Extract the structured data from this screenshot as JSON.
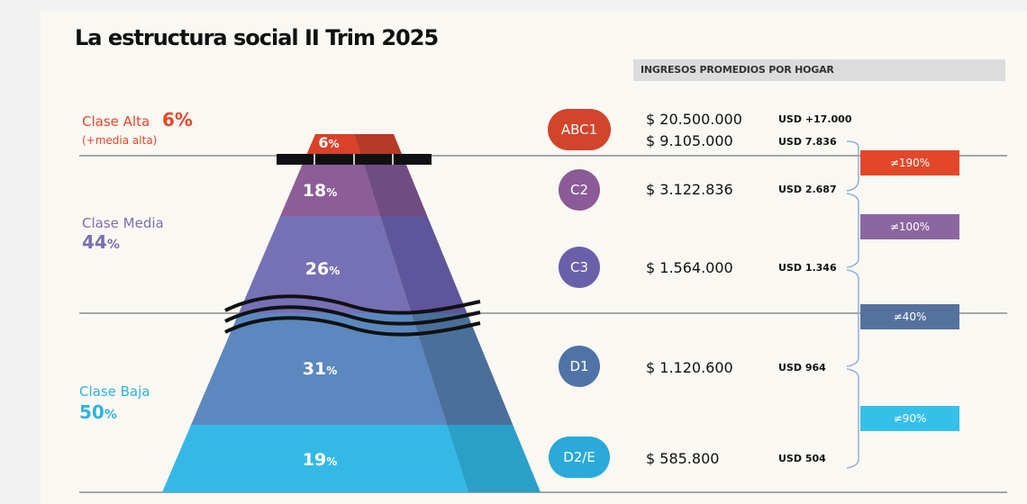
{
  "title": "La estructura social II Trim 2025",
  "income_header": "INGRESOS PROMEDIOS POR HOGAR",
  "classes": [
    {
      "name": "Clase Alta",
      "pct": "6%",
      "sub": "(+media alta)",
      "color": "#e2472a"
    },
    {
      "name": "Clase Media",
      "pct_num": "44",
      "pct_unit": "%",
      "color": "#7a6fb0"
    },
    {
      "name": "Clase Baja",
      "pct_num": "50",
      "pct_unit": "%",
      "color": "#2fb3dd"
    }
  ],
  "levels": [
    {
      "num": "6",
      "unit": "%",
      "color": "#d9412a",
      "color_dark": "#b53a28"
    },
    {
      "num": "18",
      "unit": "%",
      "color": "#8c5d97",
      "color_dark": "#6f4d82"
    },
    {
      "num": "26",
      "unit": "%",
      "color": "#7671b5",
      "color_dark": "#5e559a"
    },
    {
      "num": "31",
      "unit": "%",
      "color": "#5b88bf",
      "color_dark": "#4a6f9a"
    },
    {
      "num": "19",
      "unit": "%",
      "color": "#34b9e6",
      "color_dark": "#2a9fc7"
    }
  ],
  "segments": [
    {
      "label": "ABC1",
      "color": "#d2442b",
      "incomes": [
        {
          "ars": "$ 20.500.000",
          "usd": "USD +17.000"
        },
        {
          "ars": "$ 9.105.000",
          "usd": "USD 7.836"
        }
      ]
    },
    {
      "label": "C2",
      "color": "#8a5b96",
      "incomes": [
        {
          "ars": "$ 3.122.836",
          "usd": "USD 2.687"
        }
      ]
    },
    {
      "label": "C3",
      "color": "#6a60aa",
      "incomes": [
        {
          "ars": "$ 1.564.000",
          "usd": "USD 1.346"
        }
      ]
    },
    {
      "label": "D1",
      "color": "#4f73a6",
      "incomes": [
        {
          "ars": "$ 1.120.600",
          "usd": "USD 964"
        }
      ]
    },
    {
      "label": "D2/E",
      "color": "#2ba9d8",
      "incomes": [
        {
          "ars": "$ 585.800",
          "usd": "USD 504"
        }
      ]
    }
  ],
  "gaps": [
    {
      "label": "≠190%",
      "color": "#e2472a"
    },
    {
      "label": "≠100%",
      "color": "#8c66a0"
    },
    {
      "label": "≠40%",
      "color": "#55729f"
    },
    {
      "label": "≠90%",
      "color": "#35c0ea"
    }
  ],
  "chart_data": {
    "type": "table",
    "title": "La estructura social II Trim 2025",
    "classes": [
      {
        "name": "Clase Alta (+media alta)",
        "share_pct": 6
      },
      {
        "name": "Clase Media",
        "share_pct": 44
      },
      {
        "name": "Clase Baja",
        "share_pct": 50
      }
    ],
    "segments": [
      "ABC1",
      "C2",
      "C3",
      "D1",
      "D2/E"
    ],
    "segment_share_pct": [
      6,
      18,
      26,
      31,
      19
    ],
    "income_ars": [
      [
        20500000,
        9105000
      ],
      [
        3122836
      ],
      [
        1564000
      ],
      [
        1120600
      ],
      [
        585800
      ]
    ],
    "income_usd": [
      [
        "+17000",
        7836
      ],
      [
        2687
      ],
      [
        1346
      ],
      [
        964
      ],
      [
        504
      ]
    ],
    "gaps_pct": [
      190,
      100,
      40,
      90
    ]
  }
}
